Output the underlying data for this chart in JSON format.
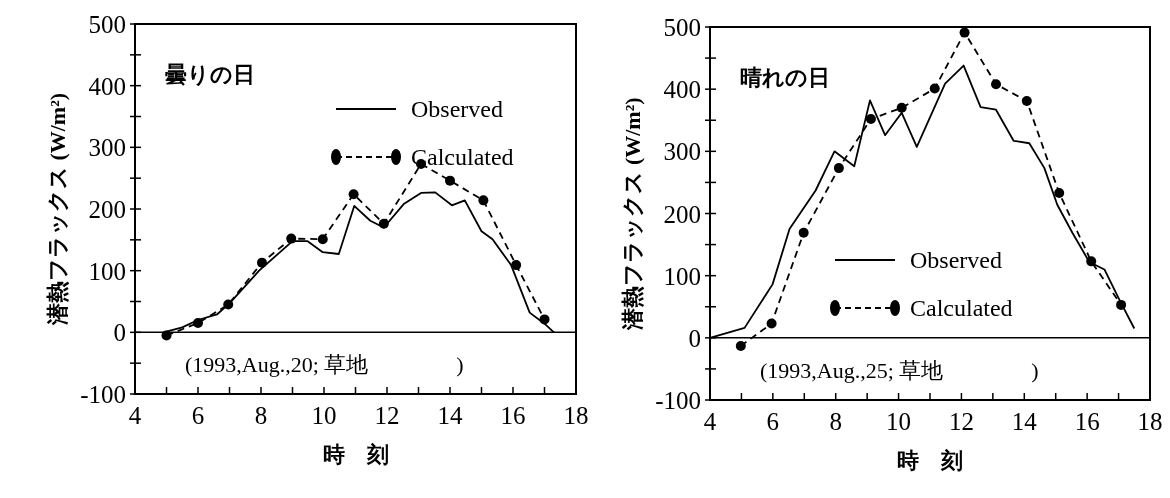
{
  "chart_data": [
    {
      "type": "line",
      "title": "曇りの日",
      "xlabel": "時　刻",
      "ylabel": "潜熱フラックス (W/m²)",
      "legend": "top right",
      "xlim": [
        4,
        18
      ],
      "xticks": [
        4,
        {
          "value": 5,
          "label": null
        },
        6,
        {
          "value": 7,
          "label": null
        },
        8,
        {
          "value": 9,
          "label": null
        },
        10,
        {
          "value": 11,
          "label": null
        },
        12,
        {
          "value": 13,
          "label": null
        },
        14,
        {
          "value": 15,
          "label": null
        },
        16,
        {
          "value": 17,
          "label": null
        },
        18
      ],
      "ylim": [
        -100,
        500
      ],
      "yticks": [
        -100,
        {
          "value": -50,
          "label": null
        },
        0,
        {
          "value": 50,
          "label": null
        },
        100,
        {
          "value": 150,
          "label": null
        },
        200,
        {
          "value": 250,
          "label": null
        },
        300,
        {
          "value": 350,
          "label": null
        },
        400,
        {
          "value": 450,
          "label": null
        },
        500
      ],
      "ref_lines": [
        {
          "axis": "y",
          "value": 0,
          "color": "#000000"
        }
      ],
      "annotations": [
        "(1993,Aug.,20; 草地　　　　)"
      ],
      "series": [
        {
          "name": "Observed",
          "color": "#000000",
          "marker": "none",
          "line_style": "solid",
          "x": [
            4.9,
            5.5,
            6.0,
            6.6,
            7.0,
            7.94,
            9.0,
            9.47,
            9.96,
            10.47,
            10.96,
            11.47,
            11.9,
            12.53,
            13.08,
            13.53,
            14.06,
            14.47,
            15.0,
            15.35,
            15.94,
            16.53,
            17.0,
            17.3
          ],
          "values": [
            0,
            8,
            20,
            29,
            47,
            100,
            148,
            148,
            130,
            127,
            205,
            181,
            170,
            208,
            226,
            227,
            206,
            214,
            164,
            151,
            109,
            32,
            14,
            0
          ]
        },
        {
          "name": "Calculated",
          "color": "#000000",
          "marker": "circle",
          "line_style": "dashed",
          "x": [
            5.0,
            6.0,
            6.96,
            8.03,
            8.96,
            9.96,
            10.94,
            11.9,
            13.08,
            14.0,
            15.06,
            16.1,
            17.0
          ],
          "values": [
            -5,
            15,
            45,
            113,
            152,
            151,
            224,
            176,
            273,
            246,
            214,
            109,
            21
          ]
        }
      ]
    },
    {
      "type": "line",
      "title": "晴れの日",
      "xlabel": "時　刻",
      "ylabel": "潜熱フラックス (W/m²)",
      "legend": "bottom right",
      "xlim": [
        4,
        18
      ],
      "xticks": [
        4,
        {
          "value": 5,
          "label": null
        },
        6,
        {
          "value": 7,
          "label": null
        },
        8,
        {
          "value": 9,
          "label": null
        },
        10,
        {
          "value": 11,
          "label": null
        },
        12,
        {
          "value": 13,
          "label": null
        },
        14,
        {
          "value": 15,
          "label": null
        },
        16,
        {
          "value": 17,
          "label": null
        },
        18
      ],
      "ylim": [
        -100,
        500
      ],
      "yticks": [
        -100,
        {
          "value": -50,
          "label": null
        },
        0,
        {
          "value": 50,
          "label": null
        },
        100,
        {
          "value": 150,
          "label": null
        },
        200,
        {
          "value": 250,
          "label": null
        },
        300,
        {
          "value": 350,
          "label": null
        },
        400,
        {
          "value": 450,
          "label": null
        },
        500
      ],
      "ref_lines": [
        {
          "axis": "y",
          "value": 0,
          "color": "#000000"
        }
      ],
      "annotations": [
        "(1993,Aug.,25; 草地　　　　)"
      ],
      "series": [
        {
          "name": "Observed",
          "color": "#000000",
          "marker": "none",
          "line_style": "solid",
          "x": [
            4.0,
            5.1,
            5.99,
            6.53,
            7.36,
            7.96,
            8.59,
            9.09,
            9.57,
            10.1,
            10.58,
            11.48,
            12.07,
            12.61,
            13.1,
            13.66,
            14.16,
            14.64,
            15.05,
            15.53,
            16.07,
            16.55,
            17.02,
            17.5
          ],
          "values": [
            0,
            16,
            86,
            175,
            237,
            300,
            276,
            382,
            326,
            362,
            307,
            409,
            438,
            371,
            367,
            317,
            313,
            273,
            214,
            169,
            122,
            110,
            62,
            15
          ]
        },
        {
          "name": "Calculated",
          "color": "#000000",
          "marker": "circle",
          "line_style": "dashed",
          "x": [
            4.98,
            5.96,
            6.98,
            8.1,
            9.12,
            10.1,
            11.15,
            12.1,
            13.1,
            14.08,
            15.11,
            16.13,
            17.08
          ],
          "values": [
            -13,
            23,
            169,
            273,
            352,
            370,
            401,
            491,
            408,
            381,
            233,
            123,
            53
          ]
        }
      ]
    }
  ]
}
